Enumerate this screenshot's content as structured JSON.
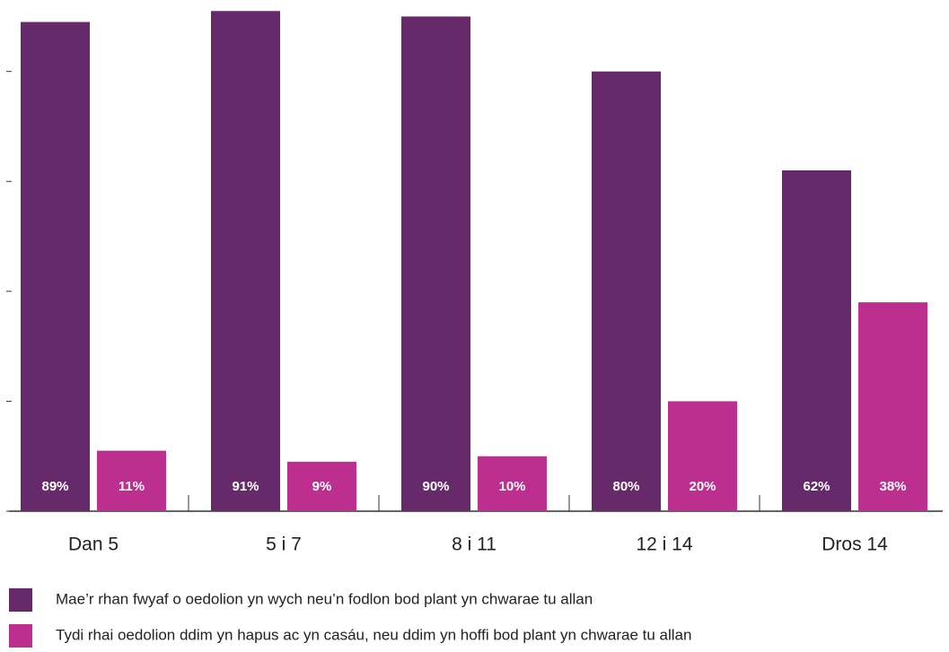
{
  "chart_data": {
    "type": "bar",
    "categories": [
      "Dan 5",
      "5 i 7",
      "8 i 11",
      "12 i 14",
      "Dros 14"
    ],
    "series": [
      {
        "name": "Mae’r rhan fwyaf o oedolion yn wych neu’n fodlon bod plant yn chwarae tu allan",
        "color": "#662a6a",
        "values": [
          89,
          91,
          90,
          80,
          62
        ],
        "value_labels": [
          "89%",
          "91%",
          "90%",
          "80%",
          "62%"
        ]
      },
      {
        "name": "Tydi rhai oedolion ddim yn hapus ac yn casáu, neu ddim yn hoffi bod plant yn chwarae tu allan",
        "color": "#bd2f8e",
        "values": [
          11,
          9,
          10,
          20,
          38
        ],
        "value_labels": [
          "11%",
          "9%",
          "10%",
          "20%",
          "38%"
        ]
      }
    ],
    "ylim": [
      0,
      93
    ],
    "yticks": [
      0,
      20,
      40,
      60,
      80
    ]
  }
}
